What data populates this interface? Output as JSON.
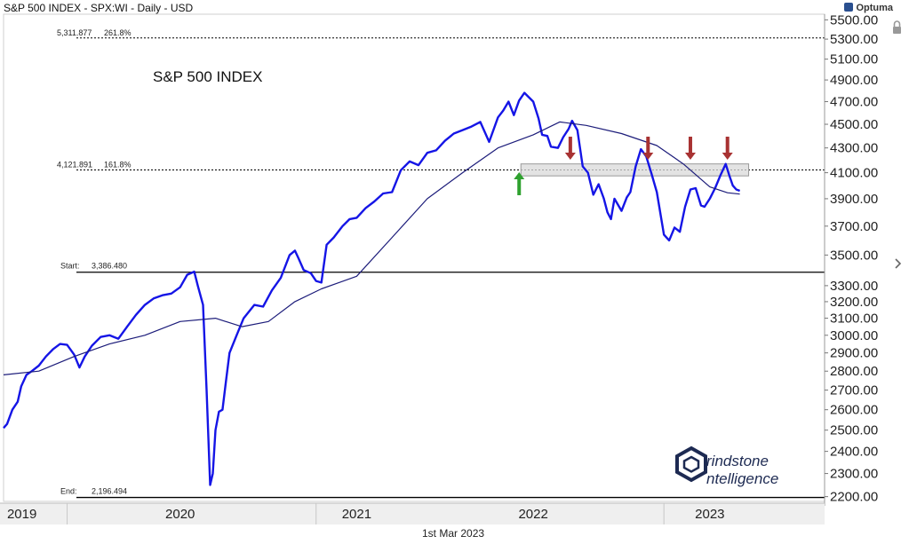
{
  "header": {
    "title": "S&P 500 INDEX - SPX:WI - Daily - USD",
    "brand": "Optuma"
  },
  "footer": {
    "date": "1st Mar 2023"
  },
  "watermark": {
    "line1": "rindstone",
    "line2": "ntelligence"
  },
  "colors": {
    "price": "#1515e6",
    "ma": "#1c1c7a",
    "level": "#000000",
    "down_arrow": "#a83232",
    "up_arrow": "#2fa12f",
    "zone_fill": "#d9d9d9"
  },
  "chart_data": {
    "type": "line",
    "title": "S&P 500 INDEX",
    "yscale": "log",
    "ylim": [
      2180,
      5560
    ],
    "xlim": [
      2019.0,
      2023.65
    ],
    "y_ticks": [
      5500,
      5300,
      5100,
      4900,
      4700,
      4500,
      4300,
      4100,
      3900,
      3700,
      3500,
      3300,
      3200,
      3100,
      3000,
      2900,
      2800,
      2700,
      2600,
      2500,
      2400,
      2300,
      2200
    ],
    "y_tick_labels": [
      "5500.00",
      "5300.00",
      "5100.00",
      "4900.00",
      "4700.00",
      "4500.00",
      "4300.00",
      "4100.00",
      "3900.00",
      "3700.00",
      "3500.00",
      "3300.00",
      "3200.00",
      "3100.00",
      "3000.00",
      "2900.00",
      "2800.00",
      "2700.00",
      "2600.00",
      "2500.00",
      "2400.00",
      "2300.00",
      "2200.00"
    ],
    "x_ticks": [
      {
        "label": "2019",
        "x": 2019.02
      },
      {
        "label": "2020",
        "x": 2020.0
      },
      {
        "label": "2021",
        "x": 2021.0
      },
      {
        "label": "2022",
        "x": 2022.0
      },
      {
        "label": "2023",
        "x": 2023.0
      }
    ],
    "x_gridlines": [
      2019.36,
      2020.77,
      2022.74
    ],
    "series": [
      {
        "key": "price",
        "x": [
          2019.0,
          2019.02,
          2019.05,
          2019.08,
          2019.1,
          2019.13,
          2019.16,
          2019.2,
          2019.24,
          2019.28,
          2019.32,
          2019.36,
          2019.4,
          2019.43,
          2019.46,
          2019.5,
          2019.55,
          2019.6,
          2019.65,
          2019.7,
          2019.75,
          2019.8,
          2019.85,
          2019.9,
          2019.95,
          2020.0,
          2020.04,
          2020.08,
          2020.1,
          2020.13,
          2020.15,
          2020.17,
          2020.185,
          2020.2,
          2020.22,
          2020.24,
          2020.26,
          2020.28,
          2020.32,
          2020.36,
          2020.42,
          2020.47,
          2020.52,
          2020.57,
          2020.62,
          2020.65,
          2020.67,
          2020.7,
          2020.74,
          2020.77,
          2020.8,
          2020.83,
          2020.87,
          2020.92,
          2020.96,
          2021.0,
          2021.05,
          2021.1,
          2021.15,
          2021.2,
          2021.25,
          2021.3,
          2021.35,
          2021.4,
          2021.45,
          2021.5,
          2021.55,
          2021.6,
          2021.65,
          2021.7,
          2021.75,
          2021.8,
          2021.83,
          2021.86,
          2021.89,
          2021.92,
          2021.95,
          2022.0,
          2022.03,
          2022.05,
          2022.08,
          2022.1,
          2022.14,
          2022.17,
          2022.2,
          2022.22,
          2022.25,
          2022.28,
          2022.31,
          2022.34,
          2022.37,
          2022.4,
          2022.42,
          2022.44,
          2022.46,
          2022.5,
          2022.53,
          2022.55,
          2022.58,
          2022.61,
          2022.64,
          2022.67,
          2022.7,
          2022.74,
          2022.77,
          2022.8,
          2022.83,
          2022.86,
          2022.89,
          2022.92,
          2022.95,
          2022.97,
          2023.0,
          2023.03,
          2023.06,
          2023.09,
          2023.11,
          2023.13,
          2023.15,
          2023.17
        ],
        "y": [
          2510,
          2530,
          2600,
          2640,
          2720,
          2780,
          2800,
          2830,
          2880,
          2920,
          2950,
          2945,
          2890,
          2820,
          2880,
          2940,
          2990,
          3000,
          2980,
          3050,
          3120,
          3180,
          3220,
          3240,
          3250,
          3290,
          3370,
          3390,
          3300,
          3180,
          2700,
          2250,
          2300,
          2500,
          2590,
          2600,
          2750,
          2900,
          3000,
          3100,
          3180,
          3170,
          3270,
          3350,
          3500,
          3530,
          3480,
          3400,
          3380,
          3330,
          3320,
          3570,
          3620,
          3700,
          3750,
          3760,
          3830,
          3880,
          3940,
          3950,
          4120,
          4190,
          4160,
          4260,
          4280,
          4360,
          4420,
          4450,
          4480,
          4520,
          4350,
          4560,
          4620,
          4700,
          4580,
          4710,
          4780,
          4700,
          4550,
          4410,
          4400,
          4310,
          4300,
          4390,
          4460,
          4530,
          4450,
          4150,
          4100,
          3930,
          4010,
          3900,
          3800,
          3750,
          3900,
          3810,
          3910,
          3950,
          4150,
          4290,
          4230,
          4090,
          3950,
          3640,
          3600,
          3690,
          3660,
          3840,
          3970,
          3980,
          3850,
          3840,
          3900,
          3980,
          4080,
          4170,
          4080,
          4000,
          3970,
          3960
        ],
        "label_note": "approx"
      },
      {
        "key": "ma200",
        "x": [
          2019.0,
          2019.2,
          2019.4,
          2019.6,
          2019.8,
          2020.0,
          2020.2,
          2020.35,
          2020.5,
          2020.65,
          2020.8,
          2021.0,
          2021.2,
          2021.4,
          2021.6,
          2021.8,
          2022.0,
          2022.15,
          2022.3,
          2022.5,
          2022.7,
          2022.85,
          2023.0,
          2023.1,
          2023.17
        ],
        "y": [
          2780,
          2800,
          2880,
          2950,
          3000,
          3080,
          3100,
          3050,
          3080,
          3200,
          3280,
          3360,
          3620,
          3900,
          4100,
          4300,
          4410,
          4520,
          4490,
          4420,
          4320,
          4170,
          3990,
          3945,
          3935
        ]
      }
    ],
    "levels": [
      {
        "value": 5311.877,
        "label_value": "5,311.877",
        "label_pct": "261.8%",
        "style": "dashed"
      },
      {
        "value": 4121.891,
        "label_value": "4,121.891",
        "label_pct": "161.8%",
        "style": "dashed"
      },
      {
        "value": 3386.48,
        "label_prefix": "Start:",
        "label_value": "3,386.480",
        "style": "solid"
      },
      {
        "value": 2196.494,
        "label_prefix": "End:",
        "label_value": "2,196.494",
        "style": "solid"
      }
    ],
    "resistance_zone": {
      "x0": 2021.93,
      "x1": 2023.22,
      "y0": 4075,
      "y1": 4170
    },
    "down_arrows_x": [
      2022.21,
      2022.65,
      2022.89,
      2023.1
    ],
    "up_arrows_x": [
      2021.92
    ]
  }
}
